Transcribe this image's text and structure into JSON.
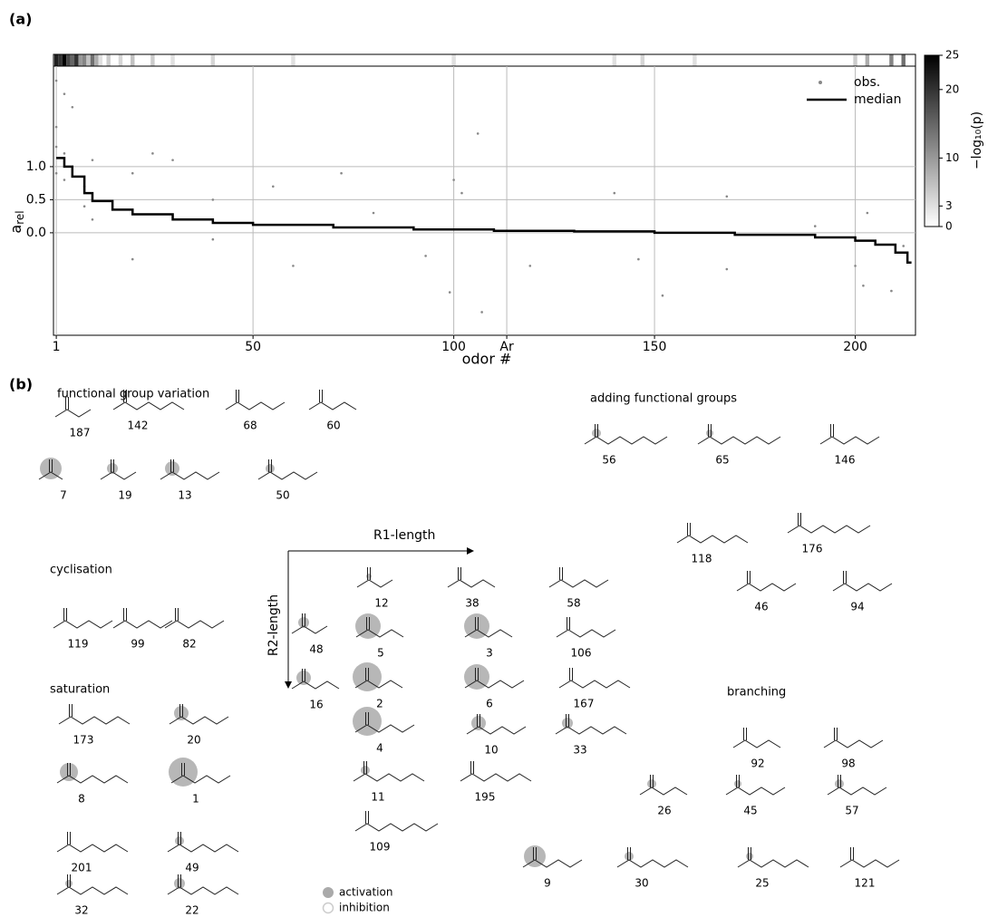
{
  "chart_data": {
    "type": "scatter",
    "panel_label": "(a)",
    "x_label": "odor #",
    "y_label": "a",
    "y_label_sub": "rel",
    "xlim": [
      0.3,
      215
    ],
    "ylim": [
      -1.55,
      2.52
    ],
    "xticks": [
      1,
      50,
      100,
      {
        "value": 113.2,
        "label": "Ar"
      },
      150,
      200
    ],
    "yticks": [
      {
        "value": 0,
        "label": "0.0"
      },
      {
        "value": 0.5,
        "label": "0.5"
      },
      {
        "value": 1,
        "label": "1.0"
      }
    ],
    "grid": true,
    "legend": "upper right",
    "series": [
      {
        "name": "obs.",
        "color": "#888888",
        "x": [
          1,
          1,
          1,
          1,
          3,
          3,
          3,
          5,
          5,
          8,
          8,
          10,
          10,
          20,
          20,
          25,
          30,
          40,
          40,
          55,
          60,
          72,
          80,
          93,
          99,
          100,
          102,
          106,
          107,
          119,
          140,
          146,
          152,
          168,
          168,
          190,
          200,
          202,
          203,
          209,
          212
        ],
        "values": [
          2.3,
          1.6,
          1.3,
          0.9,
          2.1,
          1.2,
          0.8,
          1.9,
          1.0,
          0.7,
          0.4,
          1.1,
          0.2,
          0.9,
          -0.4,
          1.2,
          1.1,
          0.5,
          -0.1,
          0.7,
          -0.5,
          0.9,
          0.3,
          -0.35,
          -0.9,
          0.8,
          0.6,
          1.5,
          -1.2,
          -0.5,
          0.6,
          -0.4,
          -0.95,
          0.55,
          -0.55,
          0.1,
          -0.5,
          -0.8,
          0.3,
          -0.88,
          -0.2
        ]
      },
      {
        "name": "median",
        "color": "#000000",
        "x": [
          1,
          3,
          5,
          8,
          10,
          15,
          20,
          30,
          40,
          50,
          70,
          90,
          110,
          130,
          150,
          170,
          190,
          200,
          205,
          210,
          213,
          214
        ],
        "values": [
          1.13,
          1.0,
          0.85,
          0.6,
          0.48,
          0.35,
          0.28,
          0.2,
          0.15,
          0.12,
          0.08,
          0.05,
          0.03,
          0.02,
          0.0,
          -0.03,
          -0.07,
          -0.12,
          -0.18,
          -0.3,
          -0.45,
          -0.45
        ]
      }
    ],
    "heat": {
      "x": [
        1,
        2,
        3,
        4,
        5,
        6,
        7,
        8,
        9,
        10,
        11,
        12,
        14,
        17,
        20,
        25,
        30,
        40,
        60,
        100,
        140,
        147,
        160,
        200,
        203,
        209,
        212
      ],
      "values": [
        22,
        20,
        25,
        18,
        15,
        20,
        10,
        12,
        6,
        14,
        8,
        3,
        5,
        4,
        6,
        5,
        3,
        4,
        3,
        3,
        3,
        4,
        3,
        5,
        8,
        12,
        14
      ]
    },
    "colorbar": {
      "label": "−log₁₀(p)",
      "lim": [
        0,
        25
      ],
      "ticks": [
        0,
        3,
        10,
        20,
        25
      ]
    }
  },
  "panel_b": {
    "panel_label": "(b)",
    "groups": [
      {
        "title": "functional group variation",
        "molecules": [
          "187",
          "142",
          "68",
          "60",
          "7",
          "19",
          "13",
          "50"
        ]
      },
      {
        "title": "cyclisation",
        "molecules": [
          "119",
          "99",
          "82"
        ]
      },
      {
        "title": "saturation",
        "molecules": [
          "173",
          "20",
          "8",
          "1",
          "201",
          "49",
          "32",
          "22"
        ]
      },
      {
        "title": "adding functional groups",
        "molecules": [
          "56",
          "65",
          "146",
          "118",
          "176",
          "46",
          "94"
        ]
      },
      {
        "title": "branching",
        "molecules": [
          "92",
          "98",
          "26",
          "45",
          "57",
          "9",
          "30",
          "25",
          "121"
        ]
      }
    ],
    "grid": {
      "x_axis": "R1-length",
      "y_axis": "R2-length",
      "molecules": [
        "12",
        "38",
        "58",
        "48",
        "5",
        "3",
        "106",
        "16",
        "2",
        "6",
        "167",
        "4",
        "10",
        "33",
        "11",
        "195",
        "109"
      ]
    },
    "legend": [
      "activation",
      "inhibition"
    ]
  }
}
